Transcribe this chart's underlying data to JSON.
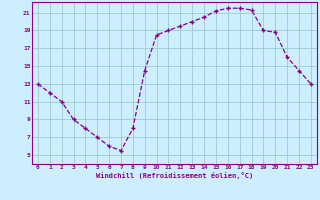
{
  "x_values": [
    0,
    1,
    2,
    3,
    4,
    5,
    6,
    7,
    8,
    9,
    10,
    11,
    12,
    13,
    14,
    15,
    16,
    17,
    18,
    19,
    20,
    21,
    22,
    23
  ],
  "y_values": [
    13,
    12,
    11,
    9,
    8,
    7,
    6,
    5.5,
    8,
    14.5,
    18.5,
    19,
    19.5,
    20,
    20.5,
    21.2,
    21.5,
    21.5,
    21.3,
    19,
    18.8,
    16,
    14.5,
    13
  ],
  "xlabel": "Windchill (Refroidissement éolien,°C)",
  "xlim_min": -0.5,
  "xlim_max": 23.5,
  "ylim_min": 4,
  "ylim_max": 22.2,
  "yticks": [
    5,
    7,
    9,
    11,
    13,
    15,
    17,
    19,
    21
  ],
  "xticks": [
    0,
    1,
    2,
    3,
    4,
    5,
    6,
    7,
    8,
    9,
    10,
    11,
    12,
    13,
    14,
    15,
    16,
    17,
    18,
    19,
    20,
    21,
    22,
    23
  ],
  "line_color": "#880088",
  "marker": "+",
  "bg_color": "#cceeff",
  "grid_color": "#99cccc",
  "tick_label_color": "#880088",
  "xlabel_color": "#880088",
  "markersize": 3.5,
  "linewidth": 0.9
}
